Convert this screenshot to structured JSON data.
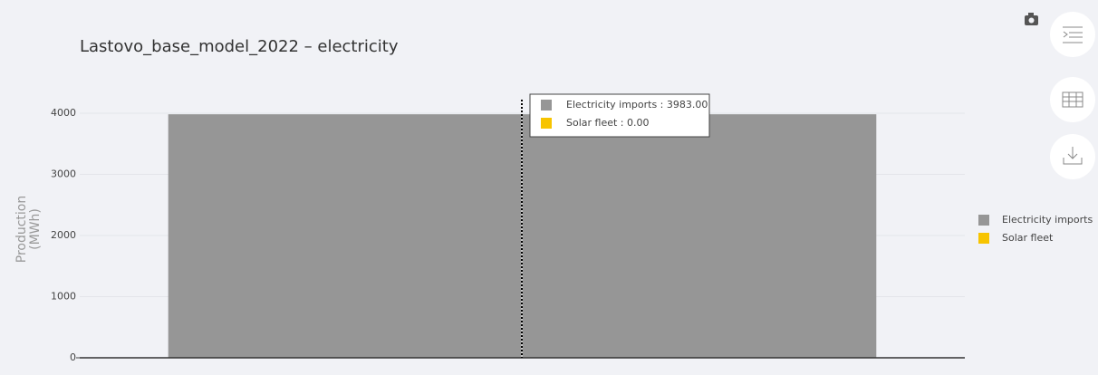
{
  "chart_data": {
    "type": "stacked_bar",
    "title": "Lastovo_base_model_2022 – electricity",
    "ylabel": "Production (MWh)",
    "categories": [
      null
    ],
    "series": [
      {
        "name": "Electricity imports",
        "color": "#969696",
        "values": [
          3983
        ]
      },
      {
        "name": "Solar fleet",
        "color": "#f7c400",
        "values": [
          0
        ]
      }
    ],
    "tooltip": [
      "Electricity imports : 3983.00",
      "Solar fleet : 0.00"
    ],
    "ylim": [
      0,
      4200
    ],
    "yticks": [
      0,
      1000,
      2000,
      3000,
      4000
    ],
    "grid": true,
    "legend": "right"
  }
}
